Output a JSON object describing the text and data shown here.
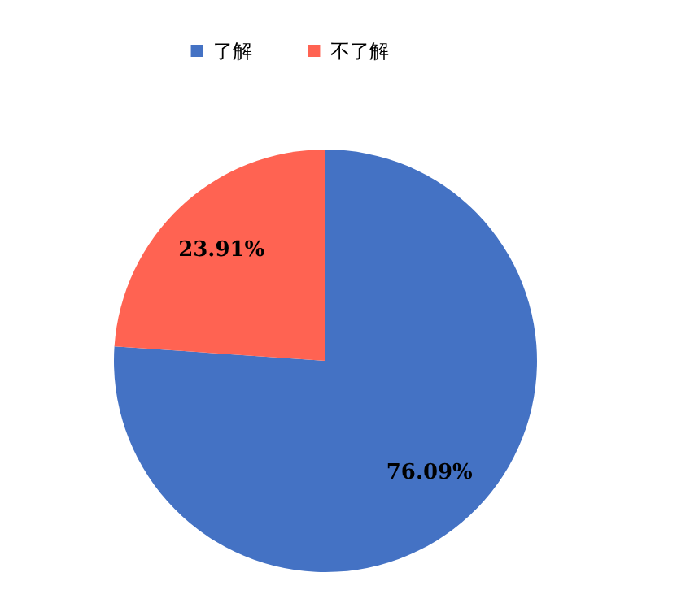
{
  "chart_data": {
    "type": "pie",
    "categories": [
      "了解",
      "不了解"
    ],
    "values": [
      76.09,
      23.91
    ],
    "colors": [
      "#4472c4",
      "#ff6352"
    ],
    "value_labels": [
      "76.09%",
      "23.91%"
    ],
    "legend": "top"
  }
}
